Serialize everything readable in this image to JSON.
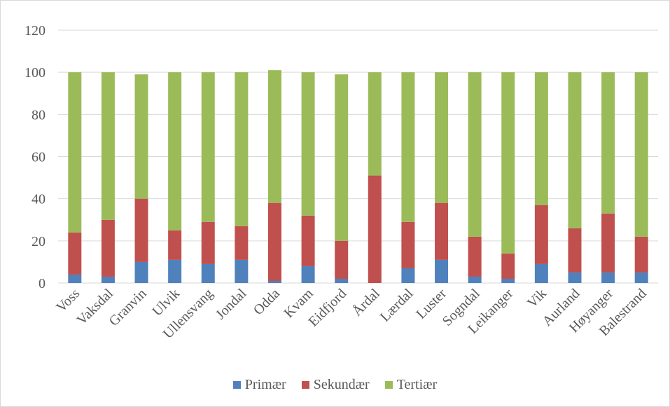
{
  "chart_data": {
    "type": "bar",
    "stacked": true,
    "categories": [
      "Voss",
      "Vaksdal",
      "Granvin",
      "Ulvik",
      "Ullensvang",
      "Jondal",
      "Odda",
      "Kvam",
      "Eidfjord",
      "Årdal",
      "Lærdal",
      "Luster",
      "Sogndal",
      "Leikanger",
      "Vik",
      "Aurland",
      "Høyanger",
      "Balestrand"
    ],
    "series": [
      {
        "name": "Primær",
        "color": "#4f81bd",
        "values": [
          4,
          3,
          10,
          11,
          9,
          11,
          1,
          8,
          2,
          0,
          7,
          11,
          3,
          2,
          9,
          5,
          5,
          5
        ]
      },
      {
        "name": "Sekundær",
        "color": "#c0504d",
        "values": [
          20,
          27,
          30,
          14,
          20,
          16,
          37,
          24,
          18,
          51,
          22,
          27,
          19,
          12,
          28,
          21,
          28,
          17
        ]
      },
      {
        "name": "Tertiær",
        "color": "#9bbb59",
        "values": [
          76,
          70,
          59,
          75,
          71,
          73,
          63,
          68,
          79,
          49,
          71,
          62,
          78,
          86,
          63,
          74,
          67,
          78
        ]
      }
    ],
    "ylim": [
      0,
      120
    ],
    "yticks": [
      "0",
      "20",
      "40",
      "60",
      "80",
      "100",
      "120"
    ],
    "grid": true,
    "legend_position": "bottom"
  }
}
